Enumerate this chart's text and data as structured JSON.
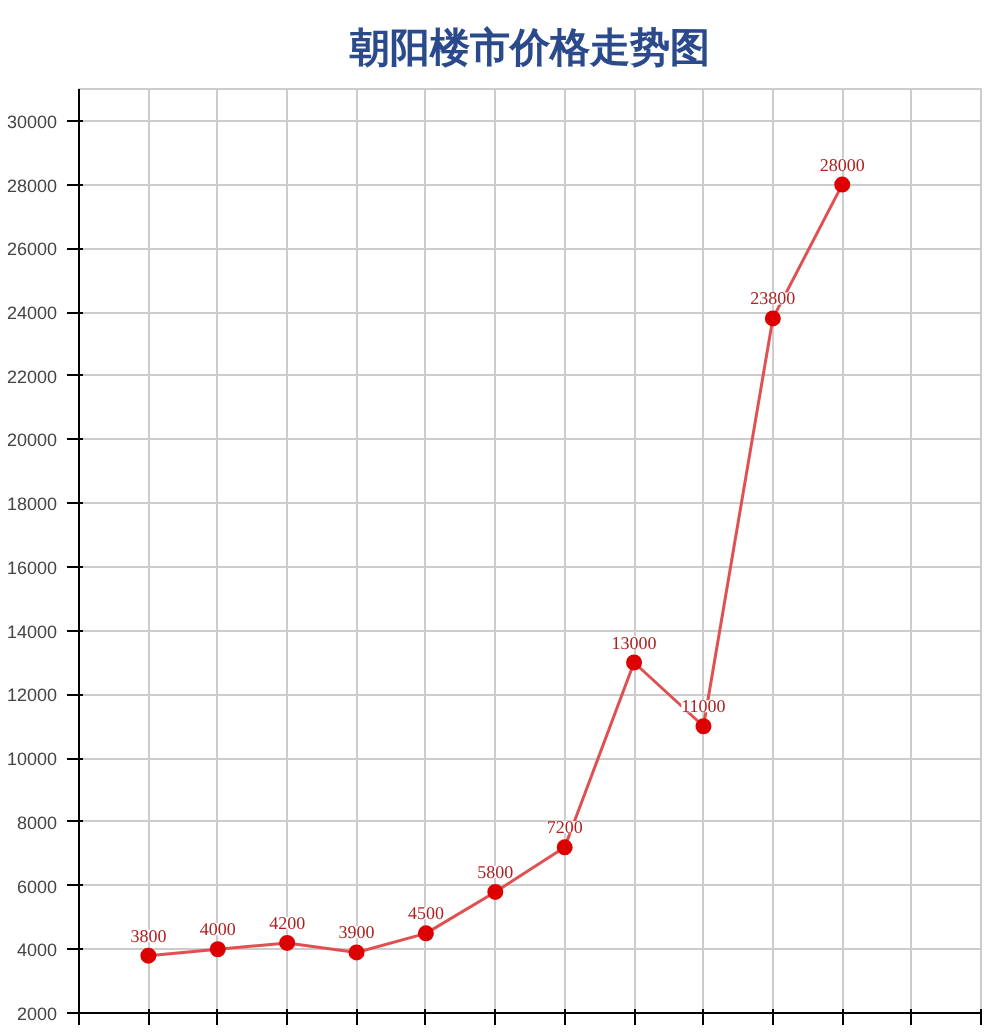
{
  "chart_data": {
    "type": "line",
    "title": "朝阳楼市价格走势图",
    "categories": [
      null,
      null,
      null,
      null,
      null,
      null,
      null,
      null,
      null,
      null,
      null
    ],
    "series": [
      {
        "color": "#e05050",
        "values": [
          3800,
          4000,
          4200,
          3900,
          4500,
          5800,
          7200,
          13000,
          11000,
          23800,
          28000
        ]
      }
    ],
    "ylim": [
      2000,
      31000
    ],
    "yticks": [
      2000,
      4000,
      6000,
      8000,
      10000,
      12000,
      14000,
      16000,
      18000,
      20000,
      22000,
      24000,
      26000,
      28000,
      30000
    ],
    "grid": true,
    "marker": "circle",
    "line_style": "solid",
    "data_labels": true
  }
}
